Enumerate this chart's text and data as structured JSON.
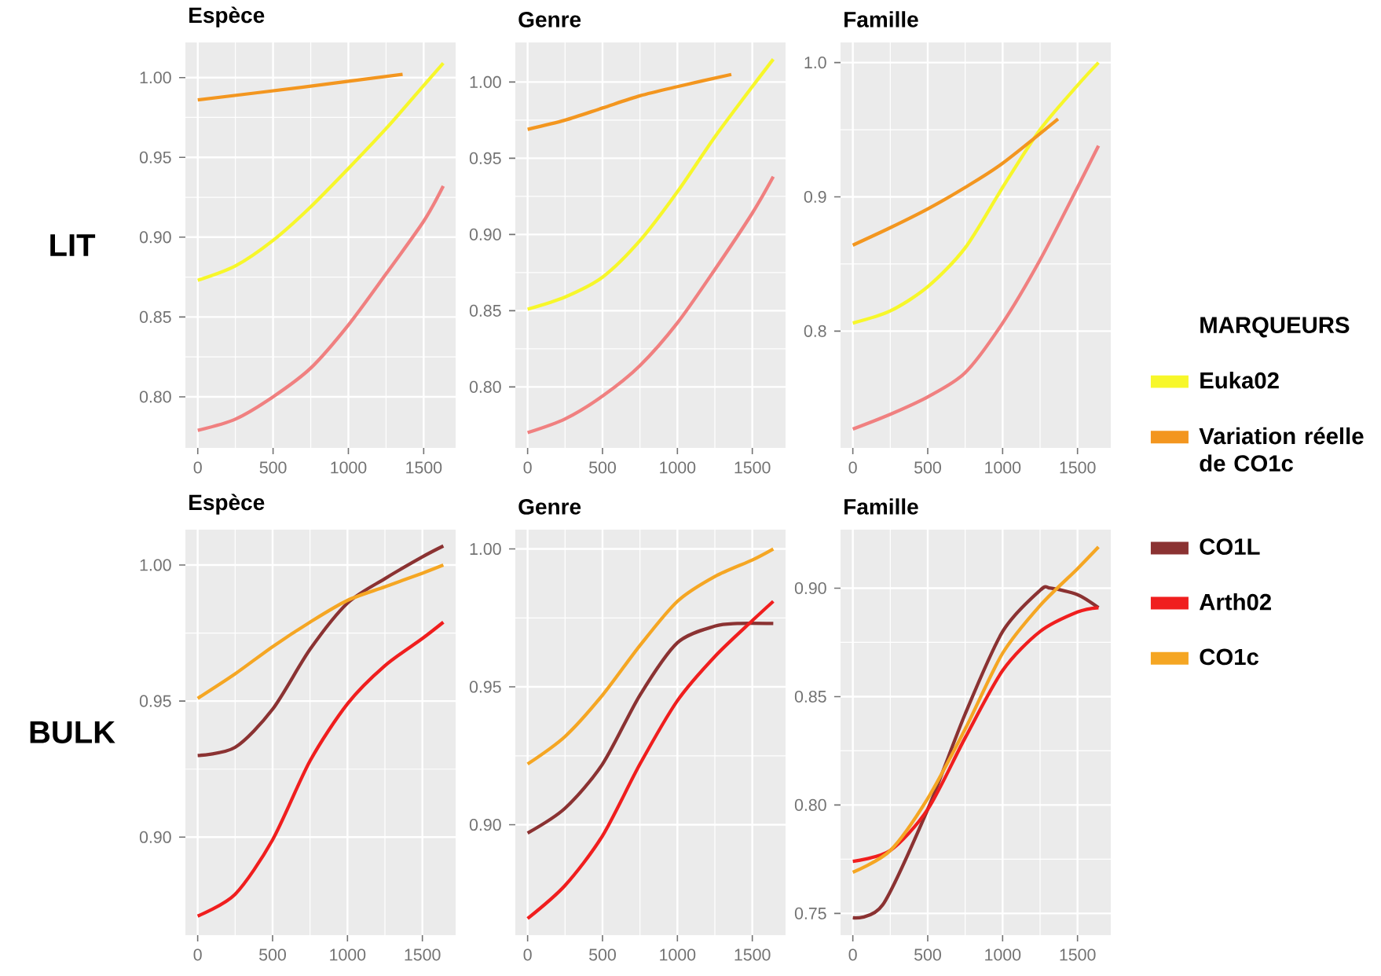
{
  "chart_data": [
    {
      "type": "line",
      "title": "Espèce",
      "ylabel": "LIT",
      "xlim": [
        -82,
        1712
      ],
      "xticks": [
        0,
        500,
        1000,
        1500
      ],
      "ylim": [
        0.768,
        1.022
      ],
      "yticks": [
        {
          "value": 0.8,
          "label": "0.80"
        },
        {
          "value": 0.85,
          "label": "0.85"
        },
        {
          "value": 0.9,
          "label": "0.90"
        },
        {
          "value": 0.95,
          "label": "0.95"
        },
        {
          "value": 1.0,
          "label": "1.00"
        }
      ],
      "grid": true,
      "series": [
        {
          "color": "#f7f72a",
          "x": [
            0,
            250,
            500,
            750,
            1000,
            1250,
            1500,
            1630
          ],
          "values": [
            0.873,
            0.882,
            0.898,
            0.919,
            0.943,
            0.968,
            0.995,
            1.009
          ]
        },
        {
          "color": "#f08080",
          "x": [
            0,
            250,
            500,
            750,
            1000,
            1250,
            1500,
            1630
          ],
          "values": [
            0.779,
            0.786,
            0.8,
            0.818,
            0.845,
            0.877,
            0.91,
            0.932
          ]
        },
        {
          "color": "#f3961f",
          "x": [
            0,
            700,
            1360
          ],
          "values": [
            0.986,
            0.994,
            1.002
          ]
        }
      ]
    },
    {
      "type": "line",
      "title": "Genre",
      "xlim": [
        -82,
        1722
      ],
      "xticks": [
        0,
        500,
        1000,
        1500
      ],
      "ylim": [
        0.76,
        1.026
      ],
      "yticks": [
        {
          "value": 0.8,
          "label": "0.80"
        },
        {
          "value": 0.85,
          "label": "0.85"
        },
        {
          "value": 0.9,
          "label": "0.90"
        },
        {
          "value": 0.95,
          "label": "0.95"
        },
        {
          "value": 1.0,
          "label": "1.00"
        }
      ],
      "grid": true,
      "series": [
        {
          "color": "#f7f72a",
          "x": [
            0,
            250,
            500,
            750,
            1000,
            1250,
            1500,
            1640
          ],
          "values": [
            0.851,
            0.859,
            0.872,
            0.896,
            0.928,
            0.964,
            0.997,
            1.015
          ]
        },
        {
          "color": "#f08080",
          "x": [
            0,
            250,
            500,
            750,
            1000,
            1250,
            1500,
            1640
          ],
          "values": [
            0.77,
            0.779,
            0.794,
            0.814,
            0.842,
            0.877,
            0.914,
            0.938
          ]
        },
        {
          "color": "#f3961f",
          "x": [
            0,
            250,
            500,
            750,
            1000,
            1360
          ],
          "values": [
            0.969,
            0.975,
            0.983,
            0.991,
            0.997,
            1.005
          ]
        }
      ]
    },
    {
      "type": "line",
      "title": "Famille",
      "legend": "right",
      "legend_title": "MARQUEURS",
      "xlim": [
        -82,
        1722
      ],
      "xticks": [
        0,
        500,
        1000,
        1500
      ],
      "ylim": [
        0.713,
        1.015
      ],
      "yticks": [
        {
          "value": 0.8,
          "label": "0.8"
        },
        {
          "value": 0.9,
          "label": "0.9"
        },
        {
          "value": 1.0,
          "label": "1.0"
        }
      ],
      "grid": true,
      "series": [
        {
          "name": "Euka02",
          "color": "#f7f72a",
          "x": [
            0,
            250,
            500,
            750,
            1000,
            1250,
            1500,
            1640
          ],
          "values": [
            0.806,
            0.815,
            0.833,
            0.862,
            0.907,
            0.95,
            0.983,
            1.0
          ]
        },
        {
          "color": "#f08080",
          "x": [
            0,
            250,
            500,
            750,
            1000,
            1250,
            1500,
            1640
          ],
          "values": [
            0.727,
            0.738,
            0.751,
            0.769,
            0.806,
            0.853,
            0.907,
            0.938
          ]
        },
        {
          "name": "Variation réelle de CO1c",
          "color": "#f3961f",
          "x": [
            0,
            250,
            500,
            750,
            1000,
            1370
          ],
          "values": [
            0.864,
            0.877,
            0.891,
            0.907,
            0.925,
            0.958
          ]
        }
      ]
    },
    {
      "type": "line",
      "title": "Espèce",
      "ylabel": "BULK",
      "xlim": [
        -82,
        1722
      ],
      "xticks": [
        0,
        500,
        1000,
        1500
      ],
      "ylim": [
        0.864,
        1.013
      ],
      "yticks": [
        {
          "value": 0.9,
          "label": "0.90"
        },
        {
          "value": 0.95,
          "label": "0.95"
        },
        {
          "value": 1.0,
          "label": "1.00"
        }
      ],
      "grid": true,
      "series": [
        {
          "color": "#8b3232",
          "x": [
            0,
            250,
            500,
            750,
            1000,
            1250,
            1500,
            1640
          ],
          "values": [
            0.93,
            0.933,
            0.947,
            0.969,
            0.986,
            0.995,
            1.003,
            1.007
          ]
        },
        {
          "color": "#f01e1e",
          "x": [
            0,
            250,
            500,
            750,
            1000,
            1250,
            1500,
            1640
          ],
          "values": [
            0.871,
            0.879,
            0.899,
            0.928,
            0.949,
            0.963,
            0.973,
            0.979
          ]
        },
        {
          "color": "#f5a623",
          "x": [
            0,
            250,
            500,
            750,
            1000,
            1250,
            1500,
            1640
          ],
          "values": [
            0.951,
            0.96,
            0.97,
            0.979,
            0.987,
            0.992,
            0.997,
            1.0
          ]
        }
      ]
    },
    {
      "type": "line",
      "title": "Genre",
      "xlim": [
        -82,
        1722
      ],
      "xticks": [
        0,
        500,
        1000,
        1500
      ],
      "ylim": [
        0.86,
        1.007
      ],
      "yticks": [
        {
          "value": 0.9,
          "label": "0.90"
        },
        {
          "value": 0.95,
          "label": "0.95"
        },
        {
          "value": 1.0,
          "label": "1.00"
        }
      ],
      "grid": true,
      "series": [
        {
          "color": "#8b3232",
          "x": [
            0,
            250,
            500,
            750,
            1000,
            1250,
            1400,
            1640
          ],
          "values": [
            0.897,
            0.906,
            0.922,
            0.947,
            0.966,
            0.972,
            0.973,
            0.973
          ]
        },
        {
          "color": "#f01e1e",
          "x": [
            0,
            250,
            500,
            750,
            1000,
            1250,
            1500,
            1640
          ],
          "values": [
            0.866,
            0.878,
            0.896,
            0.922,
            0.945,
            0.961,
            0.974,
            0.981
          ]
        },
        {
          "color": "#f5a623",
          "x": [
            0,
            250,
            500,
            750,
            1000,
            1250,
            1500,
            1640
          ],
          "values": [
            0.922,
            0.932,
            0.947,
            0.965,
            0.981,
            0.99,
            0.996,
            1.0
          ]
        }
      ]
    },
    {
      "type": "line",
      "title": "Famille",
      "legend": "right",
      "xlim": [
        -82,
        1722
      ],
      "xticks": [
        0,
        500,
        1000,
        1500
      ],
      "ylim": [
        0.74,
        0.927
      ],
      "yticks": [
        {
          "value": 0.75,
          "label": "0.75"
        },
        {
          "value": 0.8,
          "label": "0.80"
        },
        {
          "value": 0.85,
          "label": "0.85"
        },
        {
          "value": 0.9,
          "label": "0.90"
        }
      ],
      "grid": true,
      "series": [
        {
          "name": "CO1L",
          "color": "#8b3232",
          "x": [
            0,
            200,
            500,
            750,
            1000,
            1250,
            1320,
            1500,
            1640
          ],
          "values": [
            0.748,
            0.754,
            0.798,
            0.842,
            0.88,
            0.899,
            0.9,
            0.897,
            0.891
          ]
        },
        {
          "name": "Arth02",
          "color": "#f01e1e",
          "x": [
            0,
            250,
            500,
            750,
            1000,
            1250,
            1500,
            1640
          ],
          "values": [
            0.774,
            0.779,
            0.798,
            0.831,
            0.862,
            0.88,
            0.889,
            0.891
          ]
        },
        {
          "name": "CO1c",
          "color": "#f5a623",
          "x": [
            0,
            250,
            500,
            750,
            1000,
            1250,
            1500,
            1640
          ],
          "values": [
            0.769,
            0.779,
            0.803,
            0.835,
            0.87,
            0.892,
            0.909,
            0.919
          ]
        }
      ]
    }
  ]
}
